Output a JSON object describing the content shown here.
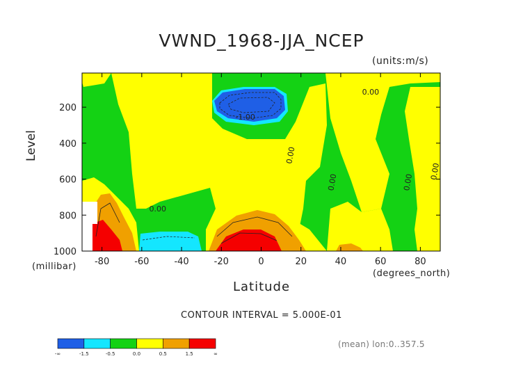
{
  "header": {
    "title": "VWND_1968-JJA_NCEP",
    "units": "(units:m/s)"
  },
  "axes": {
    "ylabel": "Level",
    "yunit": "(millibar)",
    "xlabel": "Latitude",
    "xunit": "(degrees_north)"
  },
  "footer": {
    "contour_interval": "CONTOUR INTERVAL = 5.000E-01",
    "mean_note": "(mean) lon:0..357.5"
  },
  "chart_data": {
    "type": "heatmap",
    "title": "VWND_1968-JJA_NCEP",
    "xlabel": "Latitude",
    "ylabel": "Level",
    "x_ticks": [
      -80,
      -60,
      -40,
      -20,
      0,
      20,
      40,
      60,
      80
    ],
    "y_ticks": [
      200,
      400,
      600,
      800,
      1000
    ],
    "xlim": [
      -90,
      90
    ],
    "ylim": [
      1000,
      10
    ],
    "contour_interval": 0.5,
    "contour_labels": [
      {
        "text": "0.00",
        "lat": 55,
        "p": 130
      },
      {
        "text": "-1.00",
        "lat": -8,
        "p": 270
      },
      {
        "text": "0.00",
        "lat": 16,
        "p": 470
      },
      {
        "text": "0.00",
        "lat": 37,
        "p": 620
      },
      {
        "text": "0.00",
        "lat": 75,
        "p": 620
      },
      {
        "text": "0.00",
        "lat": 90,
        "p": 560
      },
      {
        "text": "0.00",
        "lat": -52,
        "p": 780
      }
    ],
    "colorbar": {
      "labels": [
        "-∞",
        "-1.5",
        "-0.5",
        "0.0",
        "0.5",
        "1.5",
        "∞"
      ],
      "colors": [
        "#1f5fe6",
        "#14e6ff",
        "#14d214",
        "#ffff00",
        "#f0a000",
        "#f50000"
      ]
    },
    "regions": [
      {
        "level": "negative_strong",
        "color": "#1f5fe6",
        "description": "upper-level minimum near 0° at 200 mb"
      },
      {
        "level": "positive_strong",
        "color": "#f50000",
        "description": "surface maximum near -10° and -85° at 1000 mb"
      }
    ]
  },
  "colors": {
    "blue": "#1f5fe6",
    "cyan": "#14e6ff",
    "green": "#14d214",
    "yellow": "#ffff00",
    "orange": "#f0a000",
    "red": "#f50000"
  }
}
